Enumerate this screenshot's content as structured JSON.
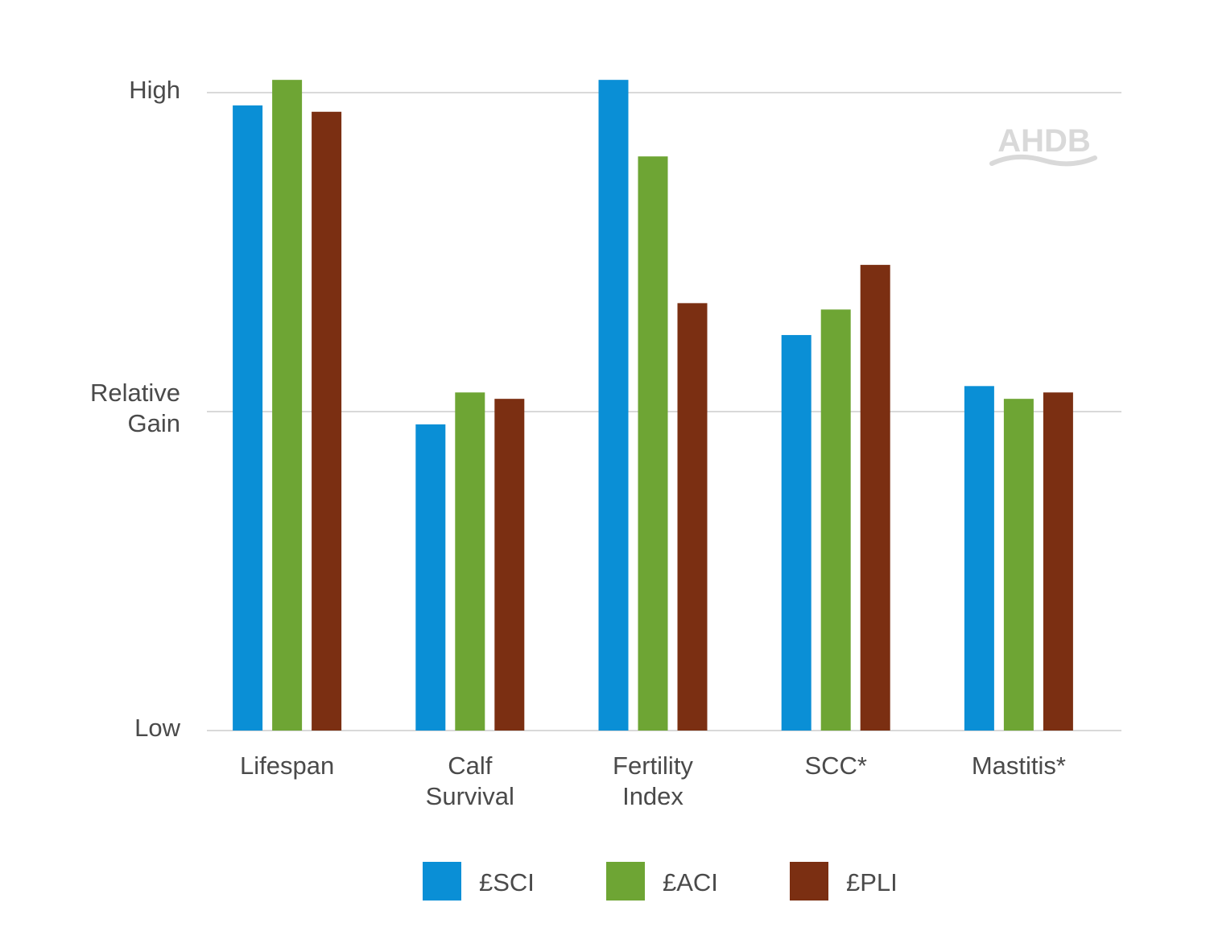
{
  "chart_data": {
    "type": "bar",
    "title": "",
    "xlabel": "",
    "ylabel": "",
    "y_tick_labels": [
      {
        "lines": [
          "High"
        ],
        "value": 100
      },
      {
        "lines": [
          "Relative",
          "Gain"
        ],
        "value": 50
      },
      {
        "lines": [
          "Low"
        ],
        "value": 0
      }
    ],
    "ylim": [
      0,
      100
    ],
    "grid": true,
    "legend_position": "bottom",
    "categories": [
      {
        "lines": [
          "Lifespan"
        ]
      },
      {
        "lines": [
          "Calf",
          "Survival"
        ]
      },
      {
        "lines": [
          "Fertility",
          "Index"
        ]
      },
      {
        "lines": [
          "SCC*"
        ]
      },
      {
        "lines": [
          "Mastitis*"
        ]
      }
    ],
    "series": [
      {
        "name": "£SCI",
        "color": "#0a8fd6",
        "values": [
          98,
          48,
          102,
          62,
          54
        ]
      },
      {
        "name": "£ACI",
        "color": "#6ea534",
        "values": [
          102,
          53,
          90,
          66,
          52
        ]
      },
      {
        "name": "£PLI",
        "color": "#7b2f12",
        "values": [
          97,
          52,
          67,
          73,
          53
        ]
      }
    ]
  },
  "watermark": {
    "text": "AHDB"
  }
}
